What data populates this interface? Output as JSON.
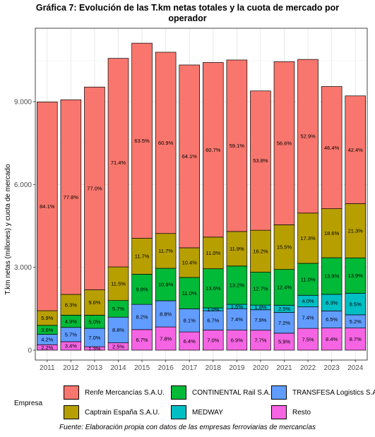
{
  "chart_data": {
    "type": "bar",
    "stacked": true,
    "title_lines": [
      "Gráfica 7: Evolución de las T.km netas totales y la cuota de mercado por",
      "operador"
    ],
    "xlabel": "",
    "ylabel": "T.km netas (millones) y cuota de mercado",
    "ylim": [
      0,
      12000
    ],
    "y_ticks": [
      0,
      3000,
      6000,
      9000
    ],
    "y_tick_labels": [
      "0",
      "3.000",
      "6.000",
      "9.000"
    ],
    "grid": true,
    "legend_position": "bottom",
    "legend_title": "Empresa",
    "categories": [
      "2011",
      "2012",
      "2013",
      "2014",
      "2015",
      "2016",
      "2017",
      "2018",
      "2019",
      "2020",
      "2021",
      "2022",
      "2023",
      "2024"
    ],
    "totals": [
      8990,
      9060,
      9540,
      10580,
      11130,
      10780,
      10330,
      10420,
      10510,
      9380,
      10440,
      10520,
      9540,
      9210
    ],
    "series": [
      {
        "name": "Resto",
        "color": "#F564E3",
        "labels": [
          "2.2%",
          "3.4%",
          "1.3%",
          "2.5%",
          "6.7%",
          "7.8%",
          "6.4%",
          "7.0%",
          "6.9%",
          "7.7%",
          "5.9%",
          "7.5%",
          "8.4%",
          "8.7%"
        ]
      },
      {
        "name": "TRANSFESA Logistics S.A.",
        "color": "#619CFF",
        "labels": [
          "4.2%",
          "5.7%",
          "7.0%",
          "8.8%",
          "8.2%",
          "8.8%",
          "8.1%",
          "6.7%",
          "7.4%",
          "7.9%",
          "7.2%",
          "7.4%",
          "6.5%",
          "5.2%"
        ]
      },
      {
        "name": "MEDWAY",
        "color": "#00BFC4",
        "labels": [
          "",
          "",
          "",
          "",
          "",
          "",
          "",
          "1.0%",
          "1.5%",
          "1.8%",
          "2.5%",
          "4.0%",
          "6.3%",
          "8.5%"
        ]
      },
      {
        "name": "CONTINENTAL Rail S.A.",
        "color": "#00BA38",
        "labels": [
          "3.6%",
          "4.9%",
          "5.0%",
          "5.7%",
          "9.8%",
          "10.9%",
          "11.0%",
          "13.6%",
          "13.2%",
          "12.7%",
          "12.4%",
          "11.0%",
          "13.9%",
          "13.9%"
        ]
      },
      {
        "name": "Captrain España S.A.U.",
        "color": "#B79F00",
        "labels": [
          "5.9%",
          "8.3%",
          "9.6%",
          "11.5%",
          "11.7%",
          "11.7%",
          "10.4%",
          "11.0%",
          "11.9%",
          "16.2%",
          "15.5%",
          "17.3%",
          "18.6%",
          "21.3%"
        ]
      },
      {
        "name": "Renfe Mercancías S.A.U.",
        "color": "#F8766D",
        "labels": [
          "84.1%",
          "77.8%",
          "77.0%",
          "71.4%",
          "63.5%",
          "60.9%",
          "64.1%",
          "60.7%",
          "59.1%",
          "53.8%",
          "56.6%",
          "52.9%",
          "46.4%",
          "42.4%"
        ]
      }
    ],
    "legend_order": [
      "Renfe Mercancías S.A.U.",
      "CONTINENTAL Rail S.A.",
      "TRANSFESA Logistics S.A.",
      "Captrain España S.A.U.",
      "MEDWAY",
      "Resto"
    ],
    "caption": "Fuente: Elaboración propia con datos de las empresas ferroviarias de mercancías"
  }
}
